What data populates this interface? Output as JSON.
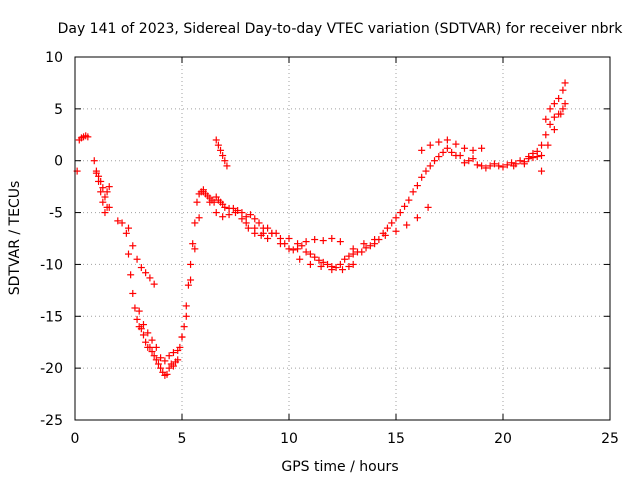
{
  "chart_data": {
    "type": "scatter",
    "title": "Day 141 of 2023, Sidereal Day-to-day VTEC variation (SDTVAR) for receiver nbrk",
    "xlabel": "GPS time / hours",
    "ylabel": "SDTVAR / TECUs",
    "xlim": [
      0,
      25
    ],
    "ylim": [
      -25,
      10
    ],
    "xticks": [
      0,
      5,
      10,
      15,
      20,
      25
    ],
    "yticks": [
      -25,
      -20,
      -15,
      -10,
      -5,
      0,
      5,
      10
    ],
    "grid": true,
    "marker": "+",
    "color": "#ff0000",
    "series": [
      {
        "name": "nbrk",
        "x": [
          0.1,
          0.2,
          0.3,
          0.4,
          0.5,
          0.6,
          0.9,
          1.0,
          1.1,
          1.2,
          1.3,
          1.4,
          1.5,
          1.6,
          1.0,
          1.1,
          1.2,
          1.3,
          1.4,
          1.5,
          1.6,
          2.0,
          2.2,
          2.4,
          2.5,
          2.6,
          2.7,
          2.8,
          2.9,
          3.0,
          3.1,
          3.2,
          3.3,
          3.4,
          3.5,
          3.6,
          3.7,
          3.8,
          3.9,
          4.0,
          4.1,
          4.2,
          4.3,
          4.4,
          4.5,
          4.6,
          4.7,
          4.8,
          4.9,
          5.0,
          5.1,
          5.2,
          5.3,
          5.4,
          5.5,
          5.6,
          5.7,
          5.8,
          5.9,
          6.0,
          6.1,
          6.2,
          6.3,
          6.4,
          6.5,
          6.6,
          6.7,
          6.8,
          6.9,
          7.0,
          7.2,
          7.4,
          7.6,
          7.8,
          8.0,
          8.2,
          8.4,
          8.6,
          8.8,
          9.0,
          9.2,
          9.4,
          9.6,
          9.8,
          10.0,
          10.2,
          10.4,
          10.6,
          10.8,
          11.0,
          11.2,
          11.4,
          11.6,
          11.8,
          12.0,
          12.2,
          12.4,
          12.6,
          12.8,
          13.0,
          13.2,
          13.4,
          13.6,
          13.8,
          14.0,
          14.2,
          14.4,
          14.6,
          14.8,
          15.0,
          15.2,
          15.4,
          15.6,
          15.8,
          16.0,
          16.2,
          16.4,
          16.6,
          16.8,
          17.0,
          17.2,
          17.4,
          17.6,
          17.8,
          18.0,
          18.2,
          18.4,
          18.6,
          18.8,
          19.0,
          19.2,
          19.4,
          19.6,
          19.8,
          20.0,
          20.2,
          20.4,
          20.6,
          20.8,
          21.0,
          21.2,
          21.4,
          21.6,
          21.8,
          22.0,
          22.2,
          22.4,
          22.6,
          22.8,
          2.5,
          2.7,
          2.9,
          3.1,
          3.3,
          3.5,
          3.7,
          3.0,
          3.2,
          3.4,
          3.6,
          3.8,
          4.0,
          4.2,
          4.4,
          4.6,
          4.8,
          5.0,
          5.2,
          5.4,
          5.6,
          5.8,
          6.6,
          6.7,
          6.8,
          6.9,
          7.0,
          7.1,
          6.0,
          6.3,
          6.6,
          6.9,
          7.2,
          7.5,
          7.8,
          8.1,
          8.4,
          8.7,
          9.0,
          8.0,
          8.4,
          8.8,
          9.2,
          9.6,
          10.0,
          10.4,
          10.8,
          11.2,
          11.6,
          12.0,
          12.4,
          10.5,
          11.0,
          11.5,
          12.0,
          12.5,
          12.8,
          13.0,
          13.0,
          13.5,
          14.0,
          14.5,
          15.0,
          15.5,
          16.0,
          16.5,
          16.2,
          16.6,
          17.0,
          17.4,
          17.8,
          18.2,
          18.6,
          19.0,
          20.5,
          21.0,
          21.2,
          21.4,
          21.6,
          21.8,
          22.0,
          22.2,
          22.4,
          22.6,
          22.8,
          22.9,
          21.8,
          22.1,
          22.4,
          22.7,
          22.9
        ],
        "y": [
          -1.0,
          2.0,
          2.2,
          2.3,
          2.4,
          2.3,
          0.0,
          -1.0,
          -2.0,
          -3.0,
          -4.0,
          -5.0,
          -3.0,
          -4.5,
          -1.2,
          -1.5,
          -2.0,
          -2.6,
          -3.5,
          -4.5,
          -2.5,
          -5.8,
          -6.0,
          -7.0,
          -9.0,
          -11.0,
          -12.8,
          -14.2,
          -15.3,
          -16.0,
          -16.2,
          -16.8,
          -17.5,
          -18.0,
          -18.0,
          -18.4,
          -18.8,
          -19.2,
          -19.6,
          -20.0,
          -20.4,
          -20.7,
          -20.6,
          -20.0,
          -19.6,
          -19.8,
          -19.4,
          -19.2,
          -18.0,
          -17.0,
          -16.0,
          -14.0,
          -12.0,
          -10.0,
          -8.0,
          -6.0,
          -4.0,
          -3.2,
          -3.0,
          -2.8,
          -3.2,
          -3.4,
          -3.6,
          -3.8,
          -4.0,
          -3.5,
          -3.8,
          -4.0,
          -4.2,
          -4.5,
          -4.6,
          -4.6,
          -4.8,
          -5.0,
          -5.4,
          -5.2,
          -5.6,
          -6.0,
          -6.5,
          -6.5,
          -7.0,
          -7.0,
          -7.5,
          -8.0,
          -8.5,
          -8.6,
          -8.5,
          -8.2,
          -8.8,
          -9.0,
          -9.3,
          -9.6,
          -9.8,
          -10.0,
          -10.2,
          -10.3,
          -10.0,
          -9.5,
          -9.2,
          -9.0,
          -8.8,
          -8.8,
          -8.4,
          -8.2,
          -8.0,
          -7.6,
          -7.0,
          -6.5,
          -6.0,
          -5.5,
          -5.0,
          -4.4,
          -3.8,
          -3.0,
          -2.4,
          -1.6,
          -1.0,
          -0.5,
          0.0,
          0.4,
          0.8,
          1.2,
          0.8,
          0.5,
          0.5,
          -0.2,
          0.0,
          0.2,
          -0.4,
          -0.5,
          -0.7,
          -0.5,
          -0.3,
          -0.5,
          -0.6,
          -0.4,
          -0.2,
          -0.3,
          0.0,
          -0.1,
          0.4,
          0.7,
          0.9,
          1.5,
          2.5,
          3.5,
          4.2,
          4.5,
          5.0,
          -6.5,
          -8.2,
          -9.5,
          -10.3,
          -10.8,
          -11.3,
          -11.9,
          -14.5,
          -15.8,
          -16.6,
          -17.3,
          -18.0,
          -19.0,
          -19.3,
          -18.8,
          -18.5,
          -18.3,
          -17.0,
          -15.0,
          -11.5,
          -8.5,
          -5.5,
          2.0,
          1.5,
          1.0,
          0.5,
          0.0,
          -0.5,
          -3.0,
          -4.0,
          -5.0,
          -5.4,
          -5.2,
          -5.0,
          -5.6,
          -6.5,
          -7.0,
          -7.2,
          -7.5,
          -6.0,
          -6.5,
          -7.0,
          -7.0,
          -8.0,
          -7.5,
          -8.0,
          -7.8,
          -7.6,
          -7.7,
          -7.5,
          -7.8,
          -9.5,
          -10.0,
          -10.2,
          -10.5,
          -10.5,
          -10.2,
          -10.0,
          -8.5,
          -8.0,
          -7.6,
          -7.2,
          -6.8,
          -6.2,
          -5.5,
          -4.5,
          1.0,
          1.5,
          1.8,
          2.0,
          1.6,
          1.2,
          1.0,
          1.2,
          -0.5,
          -0.3,
          0.2,
          0.3,
          0.4,
          0.5,
          4.0,
          5.0,
          5.5,
          6.0,
          6.8,
          7.5,
          -1.0,
          1.5,
          3.0,
          4.5,
          5.5
        ]
      }
    ]
  }
}
